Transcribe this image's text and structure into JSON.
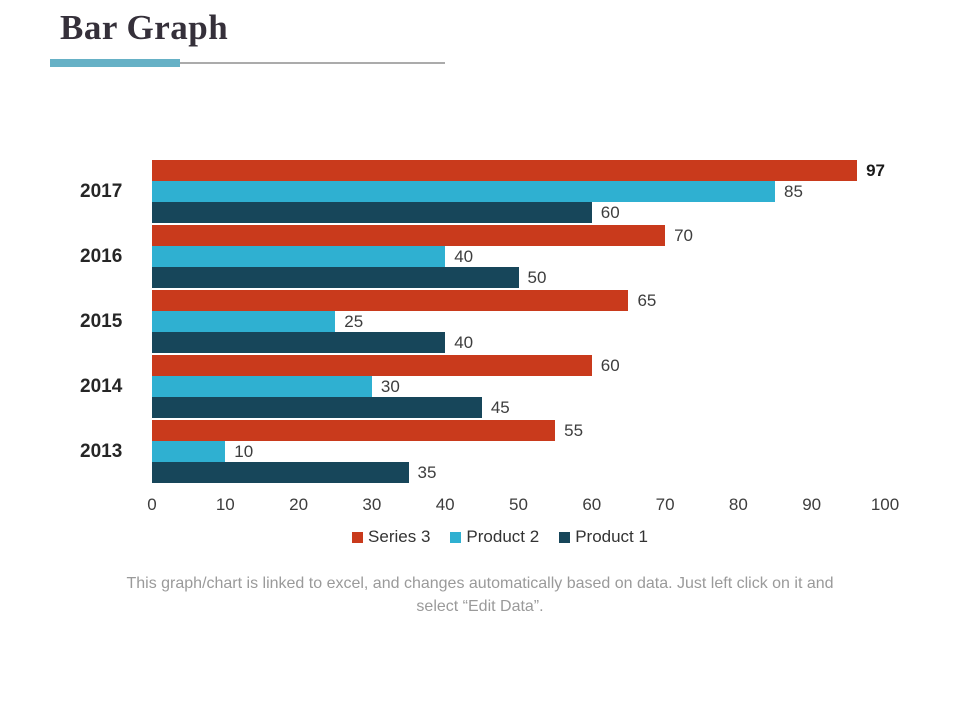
{
  "header": {
    "title": "Bar Graph"
  },
  "accent_colors": {
    "underline_accent": "#66b1c6",
    "underline_gray": "#ababab"
  },
  "chart_data": {
    "type": "bar",
    "orientation": "horizontal",
    "title": "",
    "xlabel": "",
    "ylabel": "",
    "categories": [
      "2017",
      "2016",
      "2015",
      "2014",
      "2013"
    ],
    "series": [
      {
        "name": "Series 3",
        "color": "#c93a1c",
        "values": [
          97,
          70,
          65,
          60,
          55
        ]
      },
      {
        "name": "Product 2",
        "color": "#2fb0d1",
        "values": [
          85,
          40,
          25,
          30,
          10
        ]
      },
      {
        "name": "Product 1",
        "color": "#17465a",
        "values": [
          60,
          50,
          40,
          45,
          35
        ]
      }
    ],
    "xlim": [
      0,
      100
    ],
    "xticks": [
      0,
      10,
      20,
      30,
      40,
      50,
      60,
      70,
      80,
      90,
      100
    ],
    "grid": false,
    "legend_position": "bottom",
    "data_labels": true,
    "emphasis": {
      "series": 0,
      "index": 0
    }
  },
  "footer": {
    "note": "This graph/chart is linked to excel, and changes automatically based on data. Just left click on it and select “Edit Data”."
  }
}
